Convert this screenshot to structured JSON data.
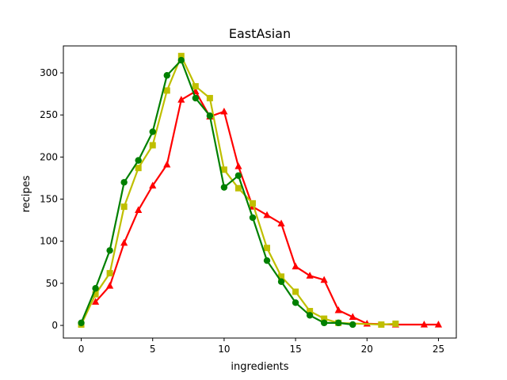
{
  "chart_data": {
    "type": "line",
    "title": "EastAsian",
    "xlabel": "ingredients",
    "ylabel": "recipes",
    "xlim": [
      -1.25,
      26.25
    ],
    "ylim": [
      -15,
      332
    ],
    "xticks": [
      0,
      5,
      10,
      15,
      20,
      25
    ],
    "yticks": [
      0,
      50,
      100,
      150,
      200,
      250,
      300
    ],
    "grid": false,
    "legend": "none",
    "series": [
      {
        "color": "#ff0000",
        "marker": "triangle",
        "x": [
          1,
          2,
          3,
          4,
          5,
          6,
          7,
          8,
          9,
          10,
          11,
          12,
          13,
          14,
          15,
          16,
          17,
          18,
          19,
          20,
          22,
          24,
          25
        ],
        "y": [
          28,
          47,
          98,
          137,
          166,
          191,
          268,
          278,
          248,
          254,
          189,
          141,
          131,
          121,
          70,
          59,
          54,
          18,
          10,
          2,
          1,
          1,
          1
        ]
      },
      {
        "color": "#bfbf00",
        "marker": "square",
        "x": [
          0,
          1,
          2,
          3,
          4,
          5,
          6,
          7,
          8,
          9,
          10,
          11,
          12,
          13,
          14,
          15,
          16,
          17,
          18,
          21,
          22
        ],
        "y": [
          1,
          37,
          62,
          141,
          187,
          214,
          279,
          320,
          284,
          270,
          185,
          163,
          145,
          92,
          58,
          40,
          17,
          8,
          3,
          1,
          2
        ]
      },
      {
        "color": "#008000",
        "marker": "circle",
        "x": [
          0,
          1,
          2,
          3,
          4,
          5,
          6,
          7,
          8,
          9,
          10,
          11,
          12,
          13,
          14,
          15,
          16,
          17,
          18,
          19
        ],
        "y": [
          3,
          44,
          89,
          170,
          196,
          230,
          297,
          315,
          270,
          249,
          164,
          178,
          128,
          77,
          52,
          27,
          12,
          3,
          3,
          1
        ]
      }
    ]
  }
}
